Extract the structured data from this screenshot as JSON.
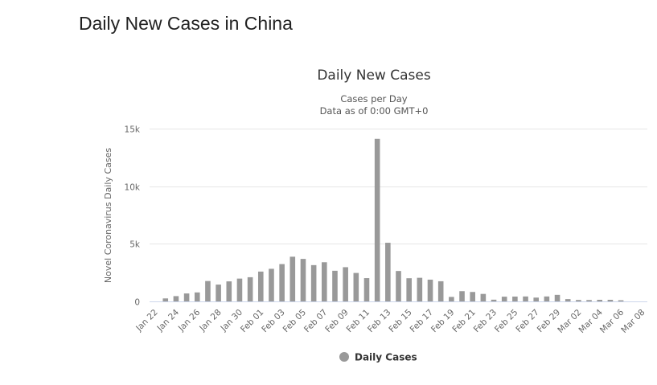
{
  "page": {
    "title": "Daily New Cases in China"
  },
  "chart_data": {
    "type": "bar",
    "title": "Daily New Cases",
    "subtitle_lines": [
      "Cases per Day",
      "Data as of 0:00 GMT+0"
    ],
    "xlabel": "",
    "ylabel": "Novel Coronavirus Daily Cases",
    "ylim": [
      0,
      15000
    ],
    "yticks": [
      0,
      5000,
      10000,
      15000
    ],
    "ytick_labels": [
      "0",
      "5k",
      "10k",
      "15k"
    ],
    "grid": true,
    "legend_position": "bottom-center",
    "colors": {
      "bar": "#999999",
      "grid": "#e6e6e6",
      "axis": "#ccd6eb"
    },
    "categories": [
      "Jan 22",
      "Jan 23",
      "Jan 24",
      "Jan 25",
      "Jan 26",
      "Jan 27",
      "Jan 28",
      "Jan 29",
      "Jan 30",
      "Jan 31",
      "Feb 01",
      "Feb 02",
      "Feb 03",
      "Feb 04",
      "Feb 05",
      "Feb 06",
      "Feb 07",
      "Feb 08",
      "Feb 09",
      "Feb 10",
      "Feb 11",
      "Feb 12",
      "Feb 13",
      "Feb 14",
      "Feb 15",
      "Feb 16",
      "Feb 17",
      "Feb 18",
      "Feb 19",
      "Feb 20",
      "Feb 21",
      "Feb 22",
      "Feb 23",
      "Feb 24",
      "Feb 25",
      "Feb 26",
      "Feb 27",
      "Feb 28",
      "Feb 29",
      "Mar 01",
      "Mar 02",
      "Mar 03",
      "Mar 04",
      "Mar 05",
      "Mar 06",
      "Mar 07",
      "Mar 08"
    ],
    "xtick_labels": [
      "Jan 22",
      "Jan 24",
      "Jan 26",
      "Jan 28",
      "Jan 30",
      "Feb 01",
      "Feb 03",
      "Feb 05",
      "Feb 07",
      "Feb 09",
      "Feb 11",
      "Feb 13",
      "Feb 15",
      "Feb 17",
      "Feb 19",
      "Feb 21",
      "Feb 23",
      "Feb 25",
      "Feb 27",
      "Feb 29",
      "Mar 02",
      "Mar 04",
      "Mar 06",
      "Mar 08"
    ],
    "series": [
      {
        "name": "Daily Cases",
        "values": [
          0,
          260,
          460,
          690,
          780,
          1770,
          1460,
          1740,
          1980,
          2100,
          2590,
          2830,
          3240,
          3880,
          3690,
          3150,
          3400,
          2660,
          2970,
          2470,
          2020,
          14110,
          5090,
          2640,
          2010,
          2050,
          1890,
          1750,
          390,
          890,
          820,
          650,
          150,
          410,
          420,
          430,
          330,
          430,
          570,
          200,
          125,
          120,
          140,
          140,
          100,
          0,
          0
        ]
      }
    ]
  }
}
